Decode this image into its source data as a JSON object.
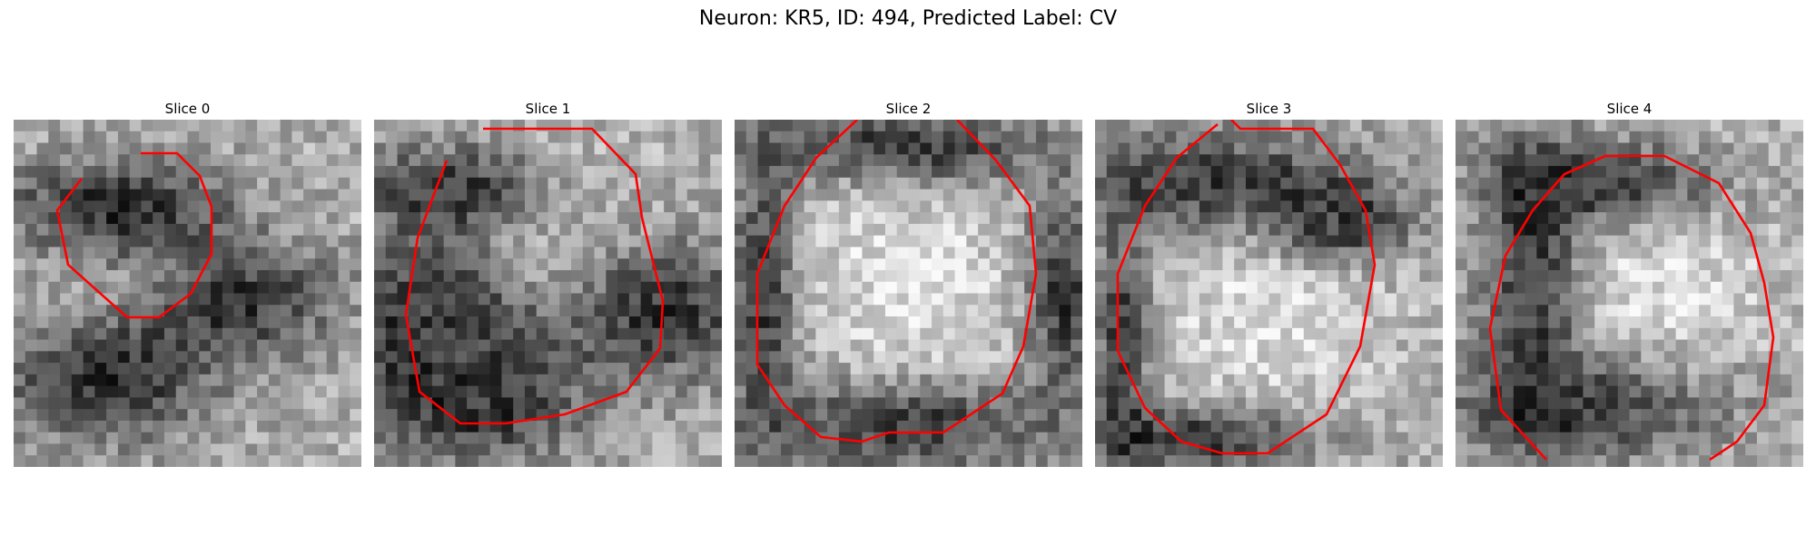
{
  "figure": {
    "title": "Neuron: KR5, ID: 494, Predicted Label: CV"
  },
  "contour_color": "#ff0000",
  "panels": [
    {
      "title": "Slice 0"
    },
    {
      "title": "Slice 1"
    },
    {
      "title": "Slice 2"
    },
    {
      "title": "Slice 3"
    },
    {
      "title": "Slice 4"
    }
  ]
}
